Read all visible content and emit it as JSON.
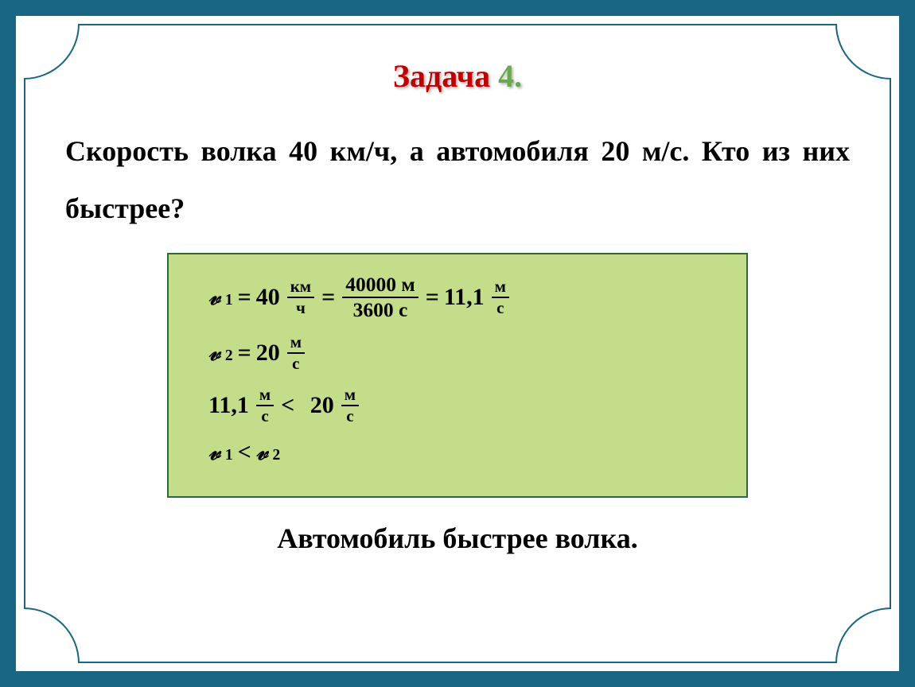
{
  "title": {
    "prefix": "Задача ",
    "number": "4."
  },
  "problem": {
    "text": "Скорость волка 40 км/ч, а автомобиля 20 м/с. Кто из них быстрее?"
  },
  "solution": {
    "eq1": {
      "var": "𝓋",
      "sub": "1",
      "eq": " = ",
      "val1": "40",
      "unit1_numer": "км",
      "unit1_denom": "ч",
      "frac2_numer": "40000 м",
      "frac2_denom": "3600 с",
      "result": "11,1",
      "result_unit_numer": "м",
      "result_unit_denom": "с"
    },
    "eq2": {
      "var": "𝓋",
      "sub": "2",
      "eq": " = ",
      "val": "20",
      "unit_numer": "м",
      "unit_denom": "с"
    },
    "eq3": {
      "left_val": "11,1",
      "left_unit_numer": "м",
      "left_unit_denom": "с",
      "op": " < ",
      "right_val": "20",
      "right_unit_numer": "м",
      "right_unit_denom": "с"
    },
    "eq4": {
      "left_var": "𝓋",
      "left_sub": "1",
      "op": " < ",
      "right_var": "𝓋",
      "right_sub": "2"
    }
  },
  "answer": {
    "text": "Автомобиль быстрее волка."
  },
  "colors": {
    "frame_border": "#196584",
    "title_prefix": "#c00000",
    "title_number": "#6aa84f",
    "solution_bg": "#c3dd8b",
    "solution_border": "#2e6b3a",
    "text": "#000000",
    "background": "#ffffff"
  },
  "typography": {
    "title_fontsize": 40,
    "problem_fontsize": 36,
    "equation_fontsize": 30,
    "answer_fontsize": 36,
    "font_family": "Georgia, Times New Roman, serif"
  }
}
